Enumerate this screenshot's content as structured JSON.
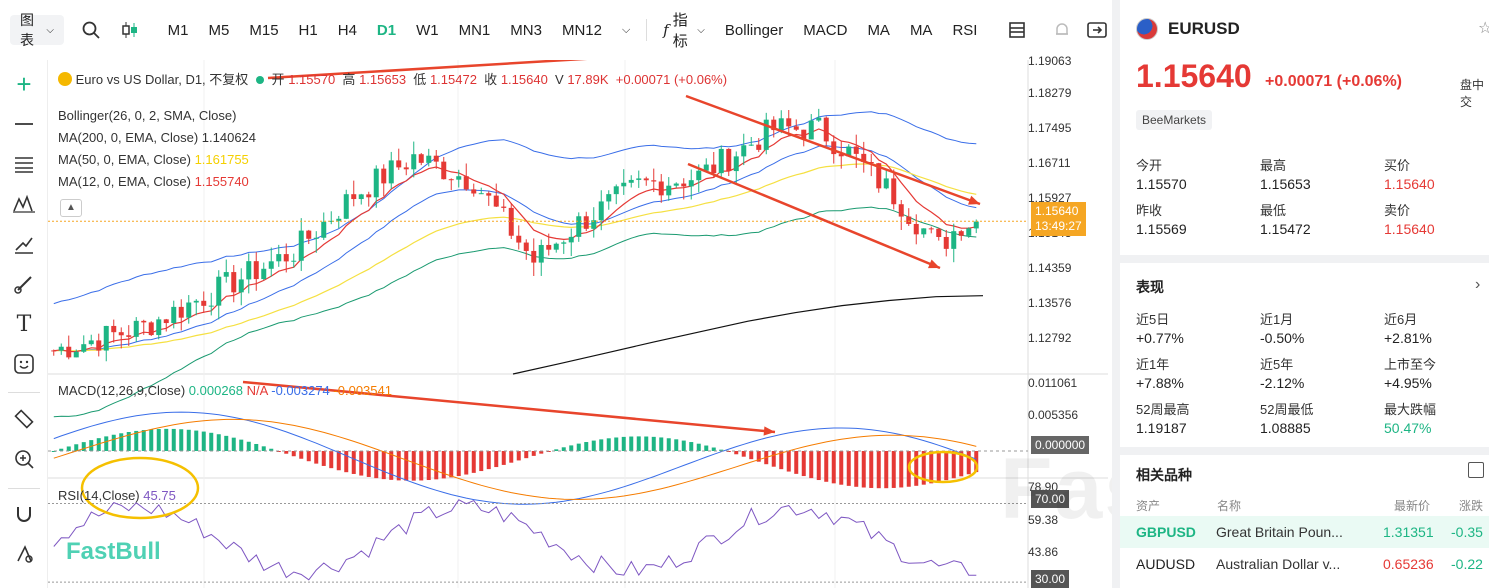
{
  "toolbar": {
    "chart_menu": "图表",
    "timeframes": [
      "M1",
      "M5",
      "M15",
      "H1",
      "H4",
      "D1",
      "W1",
      "MN1",
      "MN3",
      "MN12"
    ],
    "active_timeframe": "D1",
    "indicators_label": "指标",
    "indicators": [
      "Bollinger",
      "MACD",
      "MA",
      "MA",
      "RSI"
    ]
  },
  "legend": {
    "title": "Euro vs US Dollar, D1, 不复权",
    "open_label": "开",
    "open": "1.15570",
    "high_label": "高",
    "high": "1.15653",
    "low_label": "低",
    "low": "1.15472",
    "close_label": "收",
    "close": "1.15640",
    "volume": "17.89K",
    "change": "+0.00071 (+0.06%)",
    "bollinger": "Bollinger(26, 0, 2, SMA, Close)",
    "ma200_label": "MA(200, 0, EMA, Close)",
    "ma200_value": "1.140624",
    "ma50_label": "MA(50, 0, EMA, Close)",
    "ma50_value": "1.161755",
    "ma12_label": "MA(12, 0, EMA, Close)",
    "ma12_value": "1.155740",
    "macd_label": "MACD(12,26,9,Close)",
    "macd_v1": "0.000268",
    "macd_v2": "N/A",
    "macd_v3": "-0.003274",
    "macd_v4": "-0.003541",
    "rsi_label": "RSI(14,Close)",
    "rsi_value": "45.75"
  },
  "price_axis": {
    "main_ticks": [
      "1.19063",
      "1.18279",
      "1.17495",
      "1.16711",
      "1.15927",
      "1.15143",
      "1.14359",
      "1.13576",
      "1.12792"
    ],
    "current_price": "1.15640",
    "countdown": "13:49:27",
    "macd_ticks": [
      "0.011061",
      "0.005356",
      "0.000000"
    ],
    "rsi_ticks": [
      "78.90",
      "70.00",
      "59.38",
      "43.86",
      "30.00"
    ]
  },
  "chart_data": {
    "type": "candlestick",
    "symbol": "EURUSD",
    "timeframe": "D1",
    "last": {
      "open": 1.1557,
      "high": 1.15653,
      "low": 1.15472,
      "close": 1.1564
    },
    "ylim": [
      1.124,
      1.1906
    ],
    "macd_ylim": [
      -0.0045,
      0.0125
    ],
    "rsi_ylim": [
      28,
      82
    ],
    "rsi_levels": [
      30,
      70
    ],
    "series": [
      {
        "name": "MA(200, 0, EMA, Close)",
        "color": "#111111",
        "values": [
          1.124,
          1.1262,
          1.1285,
          1.1308,
          1.133,
          1.1352,
          1.137,
          1.1385,
          1.1396,
          1.1404,
          1.1406
        ]
      },
      {
        "name": "MA(50, 0, EMA, Close)",
        "color": "#f5e042"
      },
      {
        "name": "MA(12, 0, EMA, Close)",
        "color": "#e53935"
      },
      {
        "name": "Bollinger",
        "color": "#3a6ee8"
      }
    ]
  },
  "right_panel": {
    "symbol": "EURUSD",
    "price": "1.15640",
    "change": "+0.00071",
    "change_pct": "(+0.06%)",
    "status": "盘中交",
    "source": "BeeMarkets",
    "quote": [
      {
        "label": "今开",
        "value": "1.15570",
        "red": false
      },
      {
        "label": "最高",
        "value": "1.15653",
        "red": false
      },
      {
        "label": "买价",
        "value": "1.15640",
        "red": true
      },
      {
        "label": "昨收",
        "value": "1.15569",
        "red": false
      },
      {
        "label": "最低",
        "value": "1.15472",
        "red": false
      },
      {
        "label": "卖价",
        "value": "1.15640",
        "red": true
      }
    ],
    "performance_title": "表现",
    "performance": [
      {
        "label": "近5日",
        "value": "+0.77%",
        "green": false
      },
      {
        "label": "近1月",
        "value": "-0.50%",
        "green": false
      },
      {
        "label": "近6月",
        "value": "+2.81%",
        "green": false
      },
      {
        "label": "近1年",
        "value": "+7.88%",
        "green": false
      },
      {
        "label": "近5年",
        "value": "-2.12%",
        "green": false
      },
      {
        "label": "上市至今",
        "value": "+4.95%",
        "green": false
      },
      {
        "label": "52周最高",
        "value": "1.19187",
        "green": false
      },
      {
        "label": "52周最低",
        "value": "1.08885",
        "green": false
      },
      {
        "label": "最大跌幅",
        "value": "50.47%",
        "green": true
      }
    ],
    "related_title": "相关品种",
    "related_headers": [
      "资产",
      "名称",
      "最新价",
      "涨跌"
    ],
    "related": [
      {
        "symbol": "GBPUSD",
        "name": "Great Britain Poun...",
        "price": "1.31351",
        "change": "-0.35"
      },
      {
        "symbol": "AUDUSD",
        "name": "Australian Dollar v...",
        "price": "0.65236",
        "change": "-0.22"
      }
    ]
  },
  "watermark": "FastBull",
  "logo": "FastBull"
}
